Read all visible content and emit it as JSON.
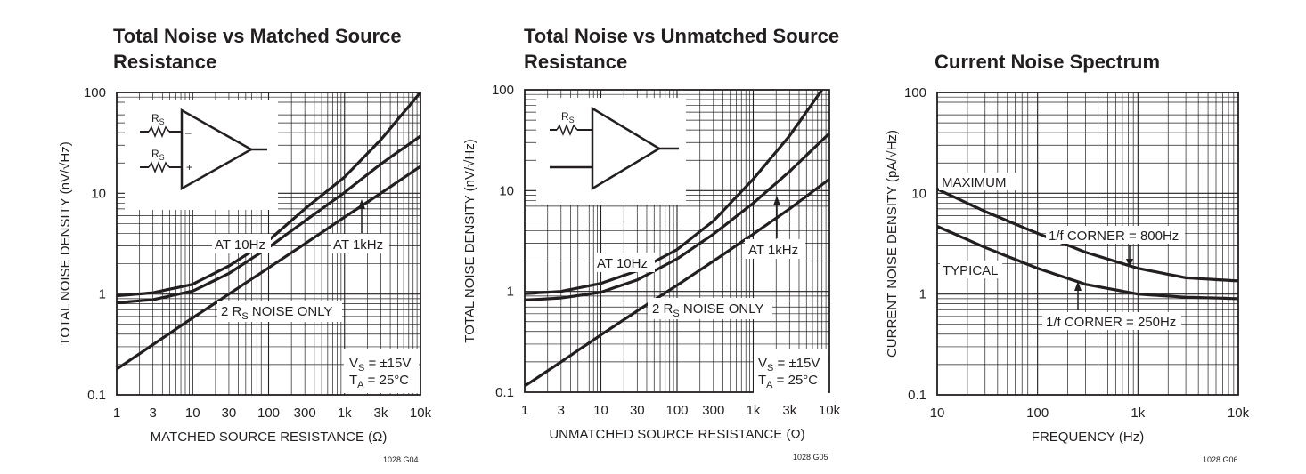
{
  "chart_data": [
    {
      "type": "line",
      "title_line1": "Total Noise vs Matched Source",
      "title_line2": "Resistance",
      "xlabel": "MATCHED SOURCE RESISTANCE (Ω)",
      "ylabel": "TOTAL NOISE DENSITY (nV/√Hz)",
      "xscale": "log",
      "yscale": "log",
      "xlim": [
        1,
        10000
      ],
      "ylim": [
        0.1,
        100
      ],
      "x_ticks": [
        {
          "v": 1,
          "t": "1"
        },
        {
          "v": 3,
          "t": "3"
        },
        {
          "v": 10,
          "t": "10"
        },
        {
          "v": 30,
          "t": "30"
        },
        {
          "v": 100,
          "t": "100"
        },
        {
          "v": 300,
          "t": "300"
        },
        {
          "v": 1000,
          "t": "1k"
        },
        {
          "v": 3000,
          "t": "3k"
        },
        {
          "v": 10000,
          "t": "10k"
        }
      ],
      "y_ticks": [
        {
          "v": 0.1,
          "t": "0.1"
        },
        {
          "v": 1,
          "t": "1"
        },
        {
          "v": 10,
          "t": "10"
        },
        {
          "v": 100,
          "t": "100"
        }
      ],
      "grid": true,
      "series": [
        {
          "name": "AT 10Hz",
          "x": [
            1,
            3,
            10,
            30,
            100,
            300,
            1000,
            3000,
            10000
          ],
          "y": [
            0.96,
            1.03,
            1.25,
            1.9,
            3.4,
            7,
            14.5,
            34,
            100
          ]
        },
        {
          "name": "AT 1kHz",
          "x": [
            1,
            3,
            10,
            30,
            100,
            300,
            1000,
            3000,
            10000
          ],
          "y": [
            0.82,
            0.88,
            1.07,
            1.6,
            2.9,
            5.3,
            10.2,
            19.5,
            37
          ]
        },
        {
          "name": "2 RS NOISE ONLY",
          "x": [
            1,
            3,
            10,
            30,
            100,
            300,
            1000,
            3000,
            10000
          ],
          "y": [
            0.18,
            0.315,
            0.58,
            1.0,
            1.82,
            3.15,
            5.8,
            10,
            18.5
          ]
        }
      ],
      "annotations": {
        "at10": "AT 10Hz",
        "at1k": "AT 1kHz",
        "rs_pre": "2 R",
        "rs_sub": "S",
        "rs_post": " NOISE ONLY"
      },
      "conditions": {
        "vs_pre": "V",
        "vs_sub": "S",
        "vs_post": " = ±15V",
        "ta_pre": "T",
        "ta_sub": "A",
        "ta_post": " = 25°C"
      },
      "inset": {
        "r_pre": "R",
        "r_sub": "S",
        "minus": "–",
        "plus": "+"
      },
      "code": "1028 G04"
    },
    {
      "type": "line",
      "title_line1": "Total Noise vs Unmatched Source",
      "title_line2": "Resistance",
      "xlabel": "UNMATCHED SOURCE RESISTANCE (Ω)",
      "ylabel": "TOTAL NOISE DENSITY (nV/√Hz)",
      "xscale": "log",
      "yscale": "log",
      "xlim": [
        1,
        10000
      ],
      "ylim": [
        0.1,
        100
      ],
      "x_ticks": [
        {
          "v": 1,
          "t": "1"
        },
        {
          "v": 3,
          "t": "3"
        },
        {
          "v": 10,
          "t": "10"
        },
        {
          "v": 30,
          "t": "30"
        },
        {
          "v": 100,
          "t": "100"
        },
        {
          "v": 300,
          "t": "300"
        },
        {
          "v": 1000,
          "t": "1k"
        },
        {
          "v": 3000,
          "t": "3k"
        },
        {
          "v": 10000,
          "t": "10k"
        }
      ],
      "y_ticks": [
        {
          "v": 0.1,
          "t": "0.1"
        },
        {
          "v": 1,
          "t": "1"
        },
        {
          "v": 10,
          "t": "10"
        },
        {
          "v": 100,
          "t": "100"
        }
      ],
      "grid": true,
      "series": [
        {
          "name": "AT 10Hz",
          "x": [
            1,
            3,
            10,
            30,
            100,
            300,
            1000,
            3000,
            8000
          ],
          "y": [
            0.95,
            1.0,
            1.2,
            1.6,
            2.6,
            5,
            13,
            35,
            100
          ]
        },
        {
          "name": "AT 1kHz",
          "x": [
            1,
            3,
            10,
            30,
            100,
            300,
            1000,
            3000,
            10000
          ],
          "y": [
            0.82,
            0.86,
            0.98,
            1.3,
            2.1,
            3.7,
            7.5,
            15.5,
            37
          ]
        },
        {
          "name": "2 RS NOISE ONLY",
          "x": [
            1,
            3,
            10,
            30,
            100,
            300,
            1000,
            3000,
            10000
          ],
          "y": [
            0.115,
            0.2,
            0.37,
            0.64,
            1.15,
            2.0,
            3.7,
            6.6,
            13
          ]
        }
      ],
      "annotations": {
        "at10": "AT 10Hz",
        "at1k": "AT 1kHz",
        "rs_pre": "2 R",
        "rs_sub": "S",
        "rs_post": " NOISE ONLY"
      },
      "conditions": {
        "vs_pre": "V",
        "vs_sub": "S",
        "vs_post": " = ±15V",
        "ta_pre": "T",
        "ta_sub": "A",
        "ta_post": " = 25°C"
      },
      "inset": {
        "r_pre": "R",
        "r_sub": "S"
      },
      "code": "1028 G05"
    },
    {
      "type": "line",
      "title_line1": "Current Noise Spectrum",
      "title_line2": "",
      "xlabel": "FREQUENCY (Hz)",
      "ylabel": "CURRENT NOISE DENSITY (pA/√Hz)",
      "xscale": "log",
      "yscale": "log",
      "xlim": [
        10,
        10000
      ],
      "ylim": [
        0.1,
        100
      ],
      "x_ticks": [
        {
          "v": 10,
          "t": "10"
        },
        {
          "v": 100,
          "t": "100"
        },
        {
          "v": 1000,
          "t": "1k"
        },
        {
          "v": 10000,
          "t": "10k"
        }
      ],
      "y_ticks": [
        {
          "v": 0.1,
          "t": "0.1"
        },
        {
          "v": 1,
          "t": "1"
        },
        {
          "v": 10,
          "t": "10"
        },
        {
          "v": 100,
          "t": "100"
        }
      ],
      "grid": true,
      "series": [
        {
          "name": "MAXIMUM",
          "x": [
            10,
            30,
            100,
            300,
            1000,
            3000,
            10000
          ],
          "y": [
            11,
            6.6,
            4,
            2.6,
            1.8,
            1.45,
            1.35
          ]
        },
        {
          "name": "TYPICAL",
          "x": [
            10,
            30,
            100,
            300,
            1000,
            3000,
            10000
          ],
          "y": [
            4.7,
            2.9,
            1.8,
            1.25,
            1.0,
            0.93,
            0.9
          ]
        }
      ],
      "annotations": {
        "max": "MAXIMUM",
        "typ": "TYPICAL",
        "corner800": "1/f CORNER = 800Hz",
        "corner250": "1/f CORNER = 250Hz"
      },
      "code": "1028 G06"
    }
  ]
}
